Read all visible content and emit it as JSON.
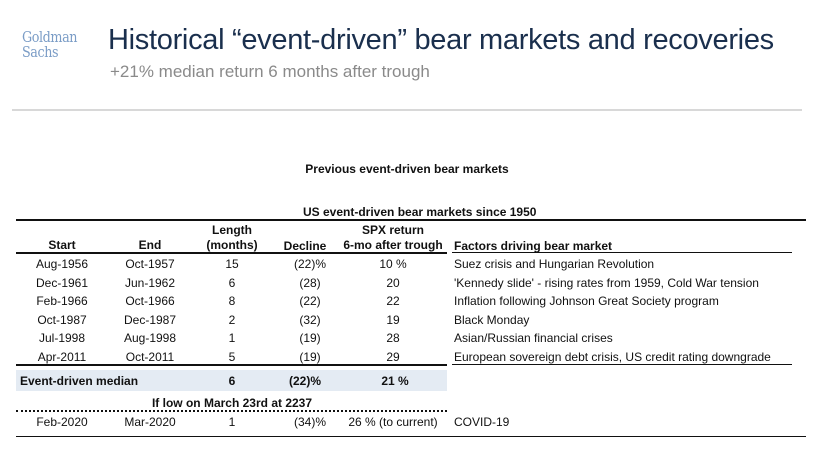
{
  "header": {
    "logo": "Goldman Sachs",
    "logo_line1": "Goldman",
    "logo_line2": "Sachs",
    "title": "Historical “event-driven” bear markets and recoveries",
    "subtitle": "+21% median return 6 months after trough"
  },
  "section_title": "Previous event-driven bear markets",
  "table": {
    "title": "US event-driven bear markets since 1950",
    "headers": {
      "start": "Start",
      "end": "End",
      "length_1": "Length",
      "length_2": "(months)",
      "decline": "Decline",
      "spx_1": "SPX return",
      "spx_2": "6-mo after trough",
      "factors": "Factors driving bear market"
    },
    "rows": [
      {
        "start": "Aug-1956",
        "end": "Oct-1957",
        "length": "15",
        "decline": "(22)%",
        "spx": "10 %",
        "factors": "Suez crisis and Hungarian Revolution"
      },
      {
        "start": "Dec-1961",
        "end": "Jun-1962",
        "length": "6",
        "decline": "(28)",
        "spx": "20",
        "factors": "'Kennedy slide' - rising rates from 1959, Cold War tension"
      },
      {
        "start": "Feb-1966",
        "end": "Oct-1966",
        "length": "8",
        "decline": "(22)",
        "spx": "22",
        "factors": "Inflation following Johnson Great Society program"
      },
      {
        "start": "Oct-1987",
        "end": "Dec-1987",
        "length": "2",
        "decline": "(32)",
        "spx": "19",
        "factors": "Black Monday"
      },
      {
        "start": "Jul-1998",
        "end": "Aug-1998",
        "length": "1",
        "decline": "(19)",
        "spx": "28",
        "factors": "Asian/Russian financial crises"
      },
      {
        "start": "Apr-2011",
        "end": "Oct-2011",
        "length": "5",
        "decline": "(19)",
        "spx": "29",
        "factors": "European sovereign debt crisis, US credit rating downgrade"
      }
    ],
    "median": {
      "label": "Event-driven median",
      "length": "6",
      "decline": "(22)%",
      "spx": "21 %"
    },
    "scenario_title": "If low on March 23rd at 2237",
    "current": {
      "start": "Feb-2020",
      "end": "Mar-2020",
      "length": "1",
      "decline": "(34)%",
      "spx": "26 % (to current)",
      "factors": "COVID-19"
    }
  }
}
